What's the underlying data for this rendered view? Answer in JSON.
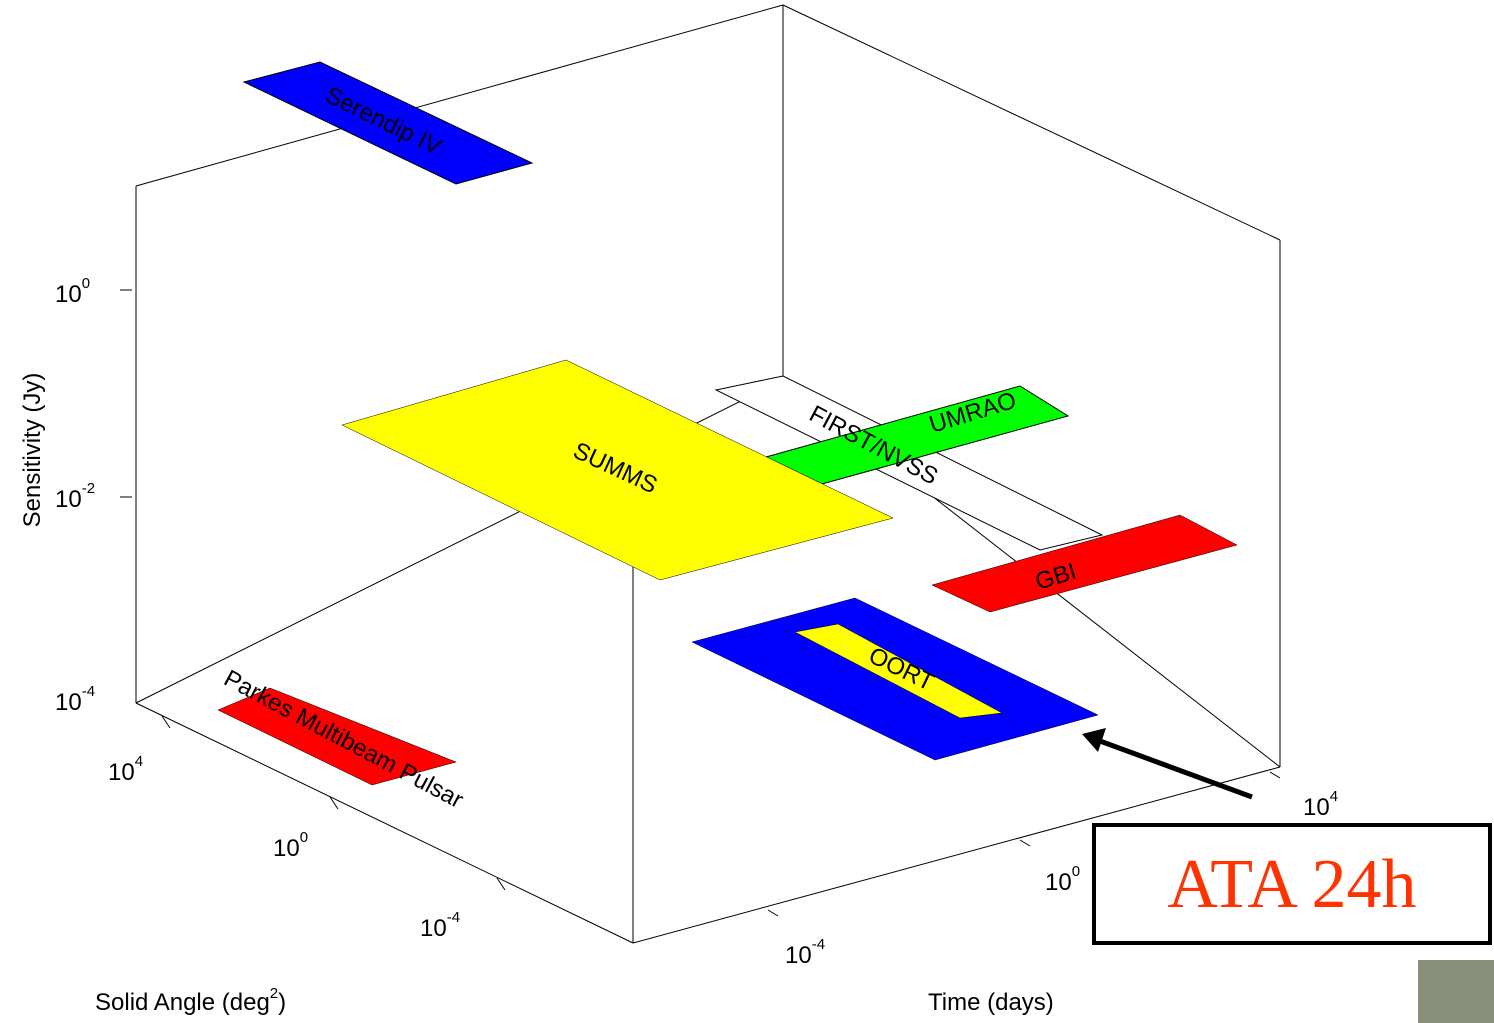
{
  "y_axis": {
    "label": "Sensitivity (Jy)",
    "ticks": [
      {
        "base": "10",
        "exp": "0"
      },
      {
        "base": "10",
        "exp": "-2"
      },
      {
        "base": "10",
        "exp": "-4"
      }
    ]
  },
  "solid_angle_axis": {
    "label": "Solid Angle (deg",
    "label_sup": "2",
    "label_end": ")",
    "ticks": [
      {
        "base": "10",
        "exp": "4"
      },
      {
        "base": "10",
        "exp": "0"
      },
      {
        "base": "10",
        "exp": "-4"
      }
    ]
  },
  "time_axis": {
    "label": "Time (days)",
    "ticks": [
      {
        "base": "10",
        "exp": "-4"
      },
      {
        "base": "10",
        "exp": "0"
      },
      {
        "base": "10",
        "exp": "4"
      }
    ]
  },
  "surveys": [
    "Serendip IV",
    "SUMMS",
    "FIRST/NVSS",
    "UMRAO",
    "GBI",
    "OORT",
    "Parkes Multibeam Pulsar"
  ],
  "annotation": "ATA 24h"
}
